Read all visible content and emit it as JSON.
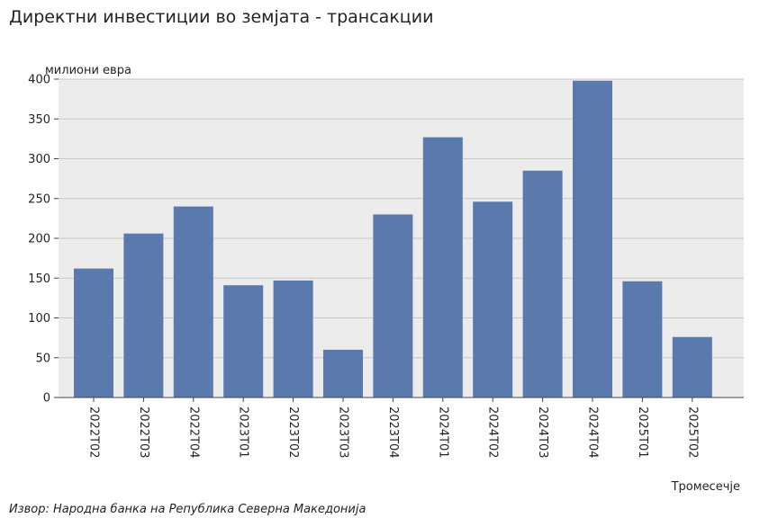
{
  "title": "Директни инвестиции во земјата - трансакции",
  "source": "Извор: Народна банка на Република Северна Македонија",
  "colors": {
    "bar": "#5a7aad",
    "plot_background": "#ececec",
    "grid": "#c8c8c8",
    "axis": "#444444"
  },
  "chart_data": {
    "type": "bar",
    "ylabel": "милиони евра",
    "xlabel": "Тромесечје",
    "ylim": [
      0,
      400
    ],
    "yticks": [
      0,
      50,
      100,
      150,
      200,
      250,
      300,
      350,
      400
    ],
    "grid": true,
    "categories": [
      "2022Т02",
      "2022Т03",
      "2022Т04",
      "2023Т01",
      "2023Т02",
      "2023Т03",
      "2023Т04",
      "2024Т01",
      "2024Т02",
      "2024Т03",
      "2024Т04",
      "2025Т01",
      "2025Т02"
    ],
    "values": [
      162,
      206,
      240,
      141,
      147,
      60,
      230,
      327,
      246,
      285,
      398,
      146,
      76
    ]
  }
}
